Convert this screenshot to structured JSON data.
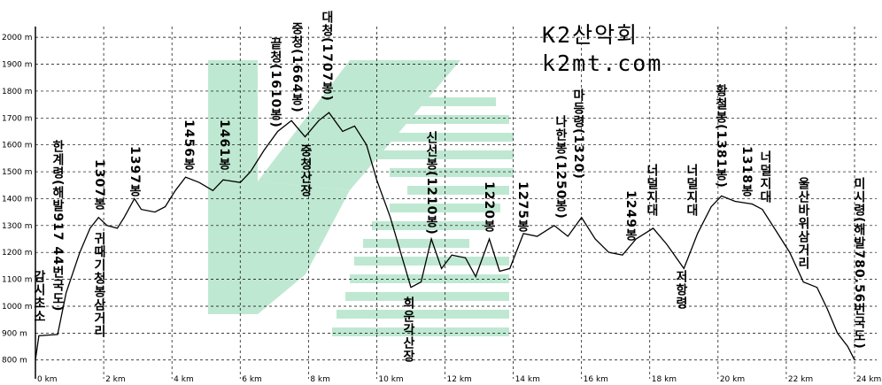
{
  "chart_data": {
    "type": "line",
    "x": [
      0,
      0.1,
      0.65,
      0.9,
      1.3,
      1.6,
      1.85,
      2.1,
      2.4,
      2.6,
      2.9,
      3.1,
      3.5,
      3.8,
      4.1,
      4.4,
      4.8,
      5.2,
      5.5,
      6.0,
      6.3,
      6.7,
      7.1,
      7.5,
      7.9,
      8.3,
      8.6,
      9.0,
      9.35,
      9.7,
      10.0,
      10.4,
      10.7,
      11.0,
      11.3,
      11.6,
      11.9,
      12.2,
      12.6,
      12.9,
      13.3,
      13.6,
      13.9,
      14.3,
      14.7,
      15.2,
      15.6,
      16.0,
      16.4,
      16.8,
      17.2,
      17.6,
      18.1,
      18.5,
      19.0,
      19.4,
      19.8,
      20.1,
      20.5,
      21.0,
      21.3,
      21.7,
      22.1,
      22.5,
      22.9,
      23.2,
      23.5,
      23.8,
      24.0
    ],
    "values": [
      800,
      890,
      895,
      1050,
      1200,
      1290,
      1330,
      1300,
      1290,
      1330,
      1400,
      1360,
      1350,
      1370,
      1430,
      1480,
      1460,
      1430,
      1470,
      1460,
      1500,
      1580,
      1650,
      1690,
      1630,
      1690,
      1720,
      1650,
      1670,
      1600,
      1470,
      1330,
      1200,
      1070,
      1090,
      1250,
      1140,
      1190,
      1180,
      1110,
      1250,
      1130,
      1140,
      1270,
      1260,
      1300,
      1260,
      1330,
      1250,
      1200,
      1190,
      1250,
      1290,
      1230,
      1140,
      1270,
      1370,
      1410,
      1390,
      1380,
      1360,
      1280,
      1200,
      1090,
      1070,
      990,
      900,
      850,
      800
    ],
    "color": "#000000",
    "xlim": [
      0,
      24
    ],
    "ylim": [
      730,
      2040
    ],
    "xticks": [
      {
        "value": 0,
        "label": "0 km"
      },
      {
        "value": 2,
        "label": "2 km"
      },
      {
        "value": 4,
        "label": "4 km"
      },
      {
        "value": 6,
        "label": "6 km"
      },
      {
        "value": 8,
        "label": "8 km"
      },
      {
        "value": 10,
        "label": "10 km"
      },
      {
        "value": 12,
        "label": "12 km"
      },
      {
        "value": 14,
        "label": "14 km"
      },
      {
        "value": 16,
        "label": "16 km"
      },
      {
        "value": 18,
        "label": "18 km"
      },
      {
        "value": 20,
        "label": "20 km"
      },
      {
        "value": 22,
        "label": "22 km"
      },
      {
        "value": 24,
        "label": "24 km"
      }
    ],
    "yticks": [
      {
        "value": 800,
        "label": "800 m"
      },
      {
        "value": 900,
        "label": "900 m"
      },
      {
        "value": 1000,
        "label": "1000 m"
      },
      {
        "value": 1100,
        "label": "1100 m"
      },
      {
        "value": 1200,
        "label": "1200 m"
      },
      {
        "value": 1300,
        "label": "1300 m"
      },
      {
        "value": 1400,
        "label": "1400 m"
      },
      {
        "value": 1500,
        "label": "1500 m"
      },
      {
        "value": 1600,
        "label": "1600 m"
      },
      {
        "value": 1700,
        "label": "1700 m"
      },
      {
        "value": 1800,
        "label": "1800 m"
      },
      {
        "value": 1900,
        "label": "1900 m"
      },
      {
        "value": 2000,
        "label": "2000 m"
      }
    ],
    "grid": true,
    "logo": [
      "K2산악회",
      "k2mt.com"
    ],
    "annotations": [
      "감시초소",
      "한계령(해발917  44번국도)",
      "1307봉",
      "귀때기청봉삼거리",
      "1397봉",
      "1456봉",
      "1461봉",
      "끝청(1610봉)",
      "중청(1664봉)",
      "대청(1707봉)",
      "중청산장",
      "신선봉(1210봉)",
      "희운각산장",
      "1220봉",
      "1275봉",
      "나한봉(1250봉)",
      "마등령(1320)",
      "1249봉",
      "너덜지대",
      "너덜지대",
      "저항령",
      "황철봉(1381봉)",
      "1318봉",
      "너덜지대",
      "울산바위삼거리",
      "미시령(해발780.56번국도)"
    ]
  }
}
